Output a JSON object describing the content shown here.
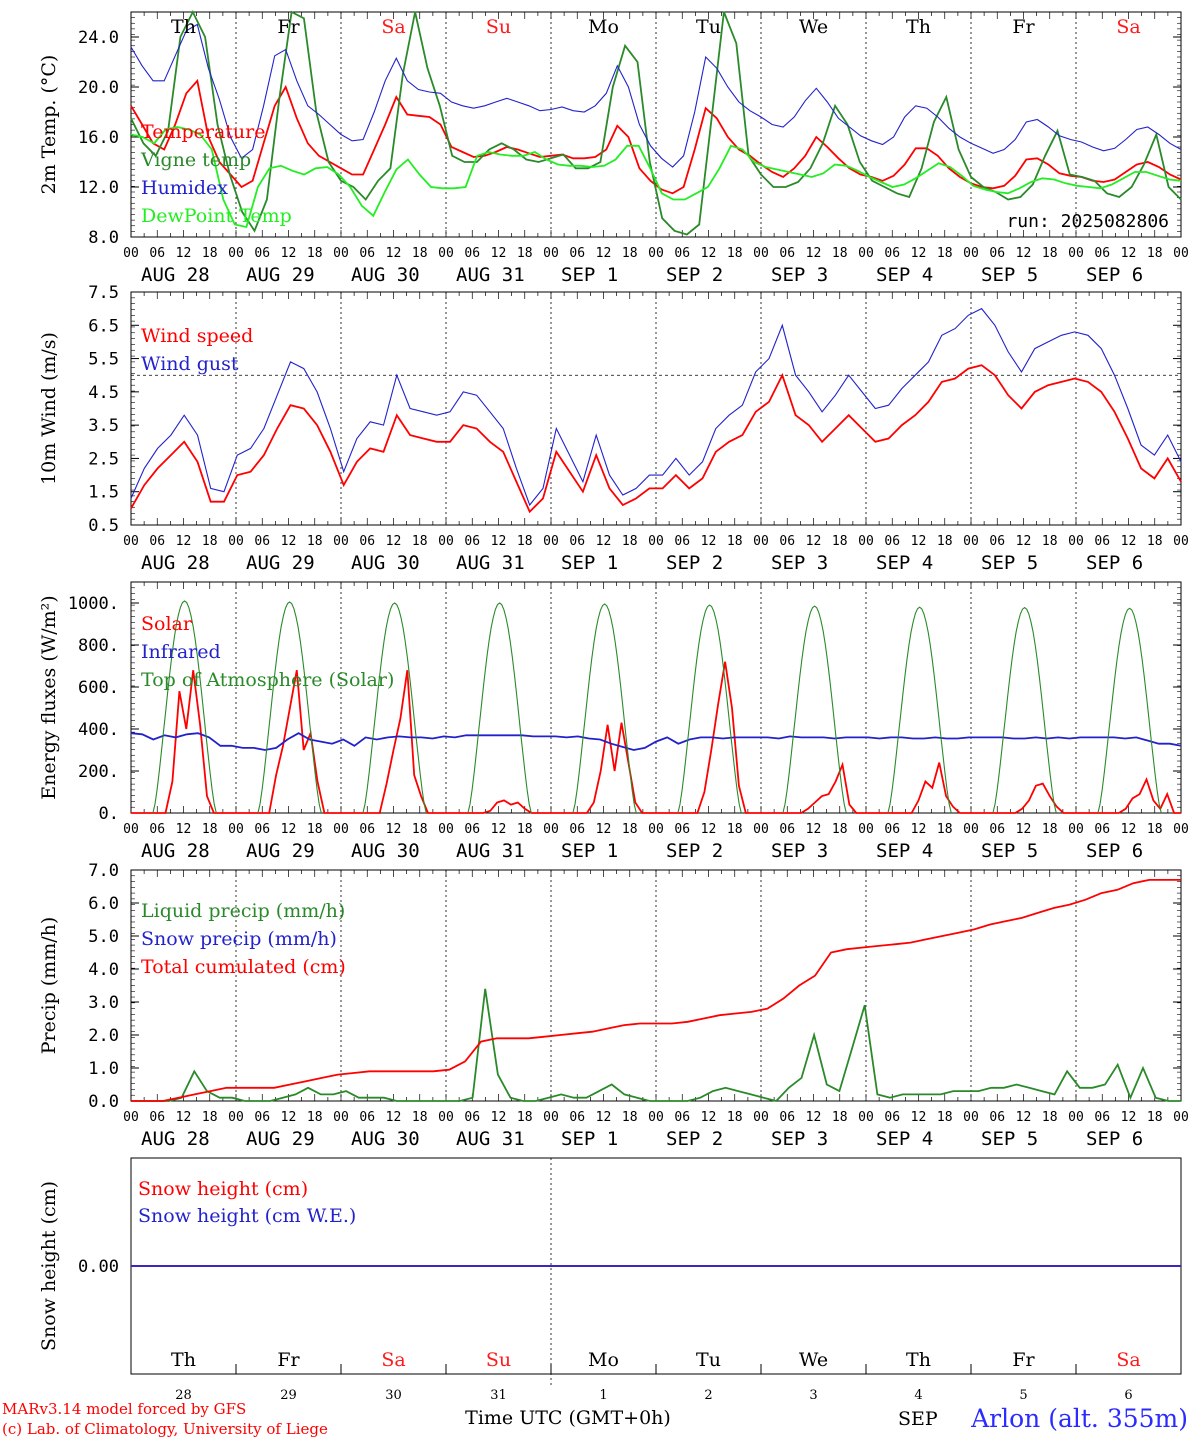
{
  "run_label": "run: 2025082806",
  "day_names": [
    "Th",
    "Fr",
    "Sa",
    "Su",
    "Mo",
    "Tu",
    "We",
    "Th",
    "Fr",
    "Sa"
  ],
  "weekend_color": "#ff1a1a",
  "date_labels": [
    "AUG 28",
    "AUG 29",
    "AUG 30",
    "AUG 31",
    "SEP  1",
    "SEP  2",
    "SEP  3",
    "SEP  4",
    "SEP  5",
    "SEP  6"
  ],
  "snow_date_numbers": [
    "28",
    "29",
    "30",
    "31",
    "1",
    "2",
    "3",
    "4",
    "5",
    "6"
  ],
  "hour_ticks": [
    "00",
    "06",
    "12",
    "18"
  ],
  "xlabel": "Time UTC (GMT+0h)",
  "snow_month_label": "SEP",
  "credit_line1": "MARv3.14 model forced by GFS",
  "credit_line2": "(c) Lab. of Climatology, University of Liege",
  "station": "Arlon (alt. 355m)",
  "chart_data": [
    {
      "type": "line",
      "ylabel": "2m Temp. (°C)",
      "ylim": [
        8.0,
        26.0
      ],
      "yticks": [
        "8.0",
        "12.0",
        "16.0",
        "20.0",
        "24.0"
      ],
      "x_hours_step": 6,
      "series": [
        {
          "name": "Temperature",
          "color": "#ff0000",
          "values": [
            18.5,
            17,
            15.5,
            15,
            17,
            19.5,
            20.5,
            16,
            14,
            13,
            12,
            12.5,
            15.5,
            18.5,
            20,
            17.5,
            15.5,
            14.5,
            14,
            13.5,
            13,
            13,
            15,
            17,
            19.2,
            17.8,
            17.7,
            17.6,
            17,
            15.2,
            14.8,
            14.4,
            14.5,
            14.8,
            15.2,
            15,
            14.7,
            14.4,
            14.5,
            14.6,
            14.3,
            14.3,
            14.4,
            15,
            16.9,
            16,
            13.5,
            12.5,
            11.8,
            11.5,
            12,
            15,
            18.3,
            17.5,
            16,
            15,
            14.5,
            13.8,
            13.2,
            12.8,
            13.5,
            14.5,
            16,
            15.2,
            14.3,
            13.5,
            13,
            12.8,
            12.5,
            12.9,
            13.8,
            15.1,
            15.1,
            14.5,
            13.5,
            12.8,
            12.3,
            12,
            11.9,
            12.1,
            12.9,
            14.2,
            14.3,
            13.8,
            13.1,
            12.9,
            12.8,
            12.5,
            12.4,
            12.6,
            13.2,
            13.8,
            14,
            13.6,
            13,
            12.6
          ]
        },
        {
          "name": "Vigne temp",
          "color": "#2a8a2a",
          "values": [
            17.5,
            15.5,
            14.5,
            16.5,
            24,
            26,
            24,
            17,
            13,
            10,
            8.5,
            11,
            19,
            26,
            25.5,
            18,
            14,
            12.5,
            12,
            11,
            12.5,
            13.5,
            21,
            26,
            21.5,
            18.5,
            14.5,
            14,
            14,
            15,
            15.5,
            15,
            14.2,
            14,
            14.3,
            14.6,
            13.5,
            13.5,
            14,
            20,
            23.3,
            22,
            14,
            9.5,
            8.5,
            8.2,
            9,
            17.5,
            26,
            23.5,
            14.5,
            13,
            12,
            12,
            12.4,
            13.5,
            15.5,
            18.5,
            17,
            14,
            12.5,
            12,
            11.5,
            11.2,
            13.5,
            17.2,
            19.2,
            15,
            12.8,
            12,
            11.6,
            11,
            11.2,
            12.2,
            14.5,
            16.5,
            13,
            12.8,
            12.5,
            11.5,
            11.2,
            12,
            13.8,
            16.2,
            12,
            11
          ]
        },
        {
          "name": "Humidex",
          "color": "#2222cc",
          "values": [
            23.2,
            21.7,
            20.5,
            20.5,
            22.5,
            24.5,
            25,
            21.5,
            19,
            16,
            14.3,
            15,
            18.5,
            22.5,
            23,
            20.5,
            18.5,
            17.8,
            17,
            16.2,
            15.7,
            15.8,
            18,
            20.5,
            22.3,
            20.5,
            19.8,
            19.6,
            19.5,
            18.8,
            18.5,
            18.3,
            18.5,
            18.8,
            19.1,
            18.8,
            18.5,
            18.1,
            18.2,
            18.4,
            18.1,
            18,
            18.5,
            19.5,
            21.7,
            20,
            17,
            15.3,
            14.3,
            13.6,
            14.5,
            18,
            22.4,
            21.5,
            20,
            18.8,
            18.1,
            17.6,
            17,
            16.8,
            17.6,
            18.9,
            19.9,
            18.8,
            17.5,
            16.8,
            16.1,
            15.7,
            15.4,
            16,
            17.6,
            18.5,
            18.3,
            17.6,
            16.7,
            16,
            15.5,
            15.1,
            14.7,
            15,
            15.8,
            17.2,
            17.4,
            16.8,
            16.1,
            15.8,
            15.6,
            15.2,
            14.9,
            15.1,
            15.8,
            16.6,
            16.8,
            16.2,
            15.5,
            15
          ]
        },
        {
          "name": "DewPoint Temp",
          "color": "#22ee22",
          "values": [
            16.2,
            16,
            15.5,
            16.6,
            16.8,
            16.6,
            16.2,
            15,
            11,
            9,
            8.8,
            12,
            13.5,
            13.7,
            13.3,
            13,
            13.5,
            13.6,
            13,
            12,
            10.5,
            9.7,
            11.6,
            13.4,
            14.2,
            13,
            12,
            11.9,
            11.9,
            12,
            14.5,
            14.8,
            14.6,
            14.5,
            14.5,
            14.8,
            14.2,
            13.8,
            13.7,
            13.7,
            13.6,
            13.7,
            14.2,
            15.3,
            15.3,
            13.5,
            11.5,
            11,
            11,
            11.5,
            12,
            13.5,
            15.3,
            15,
            14,
            13.6,
            13.4,
            13.2,
            13,
            12.8,
            13.1,
            13.8,
            13.7,
            13.3,
            12.8,
            12.4,
            12,
            12.2,
            12.7,
            13.3,
            13.9,
            13.6,
            12.9,
            12.1,
            11.8,
            11.6,
            11.5,
            11.9,
            12.4,
            12.7,
            12.6,
            12.3,
            12.1,
            12,
            11.9,
            12.2,
            12.7,
            13.2,
            13.2,
            12.9,
            12.6,
            12.5
          ]
        }
      ]
    },
    {
      "type": "line",
      "ylabel": "10m Wind (m/s)",
      "ylim": [
        0.5,
        7.5
      ],
      "yticks": [
        "0.5",
        "1.5",
        "2.5",
        "3.5",
        "4.5",
        "5.5",
        "6.5",
        "7.5"
      ],
      "reference_line": 5.0,
      "series": [
        {
          "name": "Wind speed",
          "color": "#ff0000",
          "values": [
            1,
            1.7,
            2.2,
            2.6,
            3,
            2.4,
            1.2,
            1.2,
            2,
            2.1,
            2.6,
            3.4,
            4.1,
            4,
            3.5,
            2.7,
            1.7,
            2.4,
            2.8,
            2.7,
            3.8,
            3.2,
            3.1,
            3,
            3,
            3.5,
            3.4,
            3,
            2.7,
            1.8,
            0.9,
            1.3,
            2.7,
            2.1,
            1.5,
            2.6,
            1.6,
            1.1,
            1.3,
            1.6,
            1.6,
            2,
            1.6,
            1.9,
            2.7,
            3,
            3.2,
            3.9,
            4.2,
            5,
            3.8,
            3.5,
            3,
            3.4,
            3.8,
            3.4,
            3,
            3.1,
            3.5,
            3.8,
            4.2,
            4.8,
            4.9,
            5.2,
            5.3,
            5,
            4.4,
            4,
            4.5,
            4.7,
            4.8,
            4.9,
            4.8,
            4.5,
            3.9,
            3.1,
            2.2,
            1.9,
            2.5,
            1.8
          ]
        },
        {
          "name": "Wind gust",
          "color": "#2222cc",
          "values": [
            1.3,
            2.2,
            2.8,
            3.2,
            3.8,
            3.2,
            1.6,
            1.5,
            2.6,
            2.8,
            3.4,
            4.4,
            5.4,
            5.2,
            4.5,
            3.4,
            2.1,
            3.1,
            3.6,
            3.5,
            5,
            4,
            3.9,
            3.8,
            3.9,
            4.5,
            4.4,
            3.9,
            3.4,
            2.2,
            1.1,
            1.6,
            3.4,
            2.6,
            1.8,
            3.2,
            2,
            1.4,
            1.6,
            2,
            2,
            2.5,
            2,
            2.4,
            3.4,
            3.8,
            4.1,
            5.1,
            5.5,
            6.5,
            5,
            4.5,
            3.9,
            4.4,
            5,
            4.5,
            4,
            4.1,
            4.6,
            5,
            5.4,
            6.2,
            6.4,
            6.8,
            7,
            6.5,
            5.7,
            5.1,
            5.8,
            6,
            6.2,
            6.3,
            6.2,
            5.8,
            5,
            4,
            2.9,
            2.6,
            3.2,
            2.4
          ]
        }
      ]
    },
    {
      "type": "line",
      "ylabel": "Energy fluxes (W/m²)",
      "ylim": [
        0,
        1100
      ],
      "yticks": [
        "0.",
        "200.",
        "400.",
        "600.",
        "800.",
        "1000."
      ],
      "series": [
        {
          "name": "Solar",
          "color": "#ff0000",
          "values": [
            0,
            0,
            0,
            0,
            0,
            0,
            150,
            580,
            400,
            680,
            420,
            80,
            0,
            0,
            0,
            0,
            0,
            0,
            0,
            0,
            0,
            180,
            320,
            500,
            680,
            300,
            380,
            150,
            0,
            0,
            0,
            0,
            0,
            0,
            0,
            0,
            0,
            140,
            300,
            450,
            680,
            180,
            80,
            0,
            0,
            0,
            0,
            0,
            0,
            0,
            0,
            0,
            10,
            50,
            60,
            40,
            50,
            20,
            0,
            0,
            0,
            0,
            0,
            0,
            0,
            0,
            0,
            50,
            200,
            420,
            200,
            430,
            240,
            50,
            0,
            0,
            0,
            0,
            0,
            0,
            0,
            0,
            0,
            100,
            300,
            520,
            720,
            500,
            130,
            0,
            0,
            0,
            0,
            0,
            0,
            0,
            0,
            0,
            20,
            50,
            80,
            90,
            150,
            230,
            40,
            0,
            0,
            0,
            0,
            0,
            0,
            0,
            0,
            0,
            60,
            150,
            120,
            240,
            80,
            30,
            0,
            0,
            0,
            0,
            0,
            0,
            0,
            0,
            0,
            20,
            60,
            130,
            140,
            80,
            30,
            0,
            0,
            0,
            0,
            0,
            0,
            0,
            0,
            0,
            20,
            70,
            90,
            160,
            60,
            20,
            90,
            0,
            0
          ]
        },
        {
          "name": "Infrared",
          "color": "#2222cc",
          "values": [
            380,
            375,
            350,
            370,
            360,
            375,
            380,
            360,
            320,
            320,
            310,
            310,
            300,
            310,
            350,
            380,
            350,
            340,
            330,
            350,
            320,
            360,
            350,
            360,
            365,
            360,
            360,
            355,
            365,
            360,
            370,
            370,
            370,
            370,
            370,
            370,
            365,
            365,
            365,
            360,
            365,
            355,
            350,
            330,
            315,
            300,
            310,
            340,
            360,
            330,
            350,
            360,
            360,
            355,
            360,
            360,
            360,
            360,
            355,
            365,
            360,
            360,
            360,
            355,
            360,
            360,
            360,
            355,
            360,
            360,
            355,
            355,
            360,
            355,
            355,
            360,
            360,
            360,
            360,
            355,
            355,
            360,
            355,
            360,
            355,
            360,
            360,
            360,
            360,
            355,
            360,
            345,
            330,
            330,
            320
          ]
        },
        {
          "name": "Top of Atmosphere (Solar)",
          "color": "#2a8a2a",
          "values": [
            0,
            0,
            0,
            0,
            0,
            0,
            0,
            0,
            0,
            0,
            0,
            0,
            1000,
            1000,
            1000,
            1000,
            990,
            990,
            990,
            985,
            985,
            980,
            975,
            975
          ]
        }
      ]
    },
    {
      "type": "line",
      "ylabel": "Precip (mm/h)",
      "ylim": [
        0.0,
        7.0
      ],
      "yticks": [
        "0.0",
        "1.0",
        "2.0",
        "3.0",
        "4.0",
        "5.0",
        "6.0",
        "7.0"
      ],
      "series": [
        {
          "name": "Liquid precip (mm/h)",
          "color": "#2a8a2a",
          "values": [
            0,
            0,
            0,
            0,
            0.1,
            0.9,
            0.3,
            0.1,
            0.1,
            0,
            0,
            0,
            0.1,
            0.2,
            0.4,
            0.2,
            0.2,
            0.3,
            0.1,
            0.1,
            0.1,
            0,
            0,
            0,
            0,
            0,
            0,
            0.1,
            3.4,
            0.8,
            0.1,
            0,
            0,
            0.1,
            0.2,
            0.1,
            0.1,
            0.3,
            0.5,
            0.2,
            0.1,
            0,
            0,
            0,
            0,
            0.1,
            0.3,
            0.4,
            0.3,
            0.2,
            0.1,
            0,
            0.4,
            0.7,
            2.0,
            0.5,
            0.3,
            1.6,
            2.9,
            0.2,
            0.1,
            0.2,
            0.2,
            0.2,
            0.2,
            0.3,
            0.3,
            0.3,
            0.4,
            0.4,
            0.5,
            0.4,
            0.3,
            0.2,
            0.9,
            0.4,
            0.4,
            0.5,
            1.1,
            0.1,
            1.0,
            0.1,
            0,
            0
          ]
        },
        {
          "name": "Snow precip (mm/h)",
          "color": "#2222cc",
          "values": []
        },
        {
          "name": "Total cumulated (cm)",
          "color": "#ff0000",
          "values": [
            0,
            0,
            0,
            0.1,
            0.2,
            0.3,
            0.4,
            0.4,
            0.4,
            0.4,
            0.5,
            0.6,
            0.7,
            0.8,
            0.85,
            0.9,
            0.9,
            0.9,
            0.9,
            0.9,
            0.95,
            1.2,
            1.8,
            1.9,
            1.9,
            1.9,
            1.95,
            2.0,
            2.05,
            2.1,
            2.2,
            2.3,
            2.35,
            2.35,
            2.35,
            2.4,
            2.5,
            2.6,
            2.65,
            2.7,
            2.8,
            3.1,
            3.5,
            3.8,
            4.5,
            4.6,
            4.65,
            4.7,
            4.75,
            4.8,
            4.9,
            5.0,
            5.1,
            5.2,
            5.35,
            5.45,
            5.55,
            5.7,
            5.85,
            5.95,
            6.1,
            6.3,
            6.4,
            6.6,
            6.7,
            6.7,
            6.7
          ]
        }
      ]
    },
    {
      "type": "line",
      "ylabel": "Snow height (cm)",
      "ylim": [
        -1.0,
        1.0
      ],
      "yticks": [
        "0.00"
      ],
      "series": [
        {
          "name": "Snow height (cm)",
          "color": "#ff0000",
          "values": [
            0,
            0
          ]
        },
        {
          "name": "Snow height (cm W.E.)",
          "color": "#2222cc",
          "values": [
            0,
            0
          ]
        }
      ]
    }
  ]
}
